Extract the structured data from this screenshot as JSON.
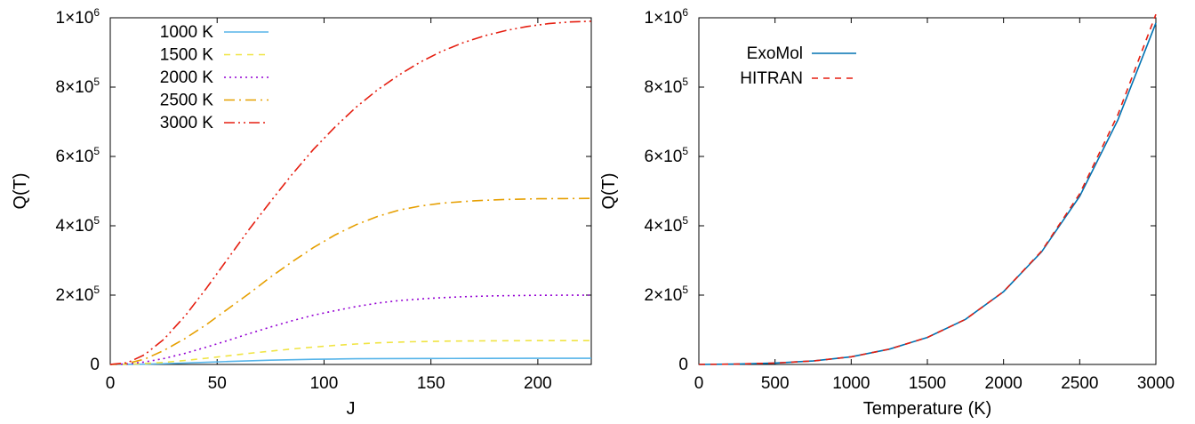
{
  "chart_data": [
    {
      "type": "line",
      "xlabel": "J",
      "ylabel": "Q(T)",
      "xlim": [
        0,
        225
      ],
      "ylim": [
        0,
        1000000
      ],
      "x_ticks": [
        0,
        50,
        100,
        150,
        200
      ],
      "x_tick_labels": [
        "0",
        "50",
        "100",
        "150",
        "200"
      ],
      "y_ticks": [
        0,
        200000,
        400000,
        600000,
        800000,
        1000000
      ],
      "y_tick_labels": [
        {
          "value": 0,
          "mant": "0",
          "exp": ""
        },
        {
          "value": 200000,
          "mant": "2×10",
          "exp": "5"
        },
        {
          "value": 400000,
          "mant": "4×10",
          "exp": "5"
        },
        {
          "value": 600000,
          "mant": "6×10",
          "exp": "5"
        },
        {
          "value": 800000,
          "mant": "8×10",
          "exp": "5"
        },
        {
          "value": 1000000,
          "mant": "1×10",
          "exp": "6"
        }
      ],
      "grid": false,
      "legend_position": "top-left",
      "series": [
        {
          "name": "1000 K",
          "color": "#56b4e9",
          "dash": "solid",
          "x": [
            0,
            8,
            16,
            25,
            35,
            45,
            55,
            65,
            75,
            85,
            95,
            105,
            115,
            130,
            150,
            175,
            200,
            225
          ],
          "y": [
            0,
            200,
            800,
            2000,
            4000,
            6200,
            8500,
            10500,
            12200,
            13700,
            14800,
            15700,
            16300,
            16900,
            17300,
            17500,
            17600,
            17600
          ]
        },
        {
          "name": "1500 K",
          "color": "#f0e442",
          "dash": "dash",
          "x": [
            0,
            8,
            16,
            25,
            35,
            45,
            55,
            65,
            75,
            85,
            95,
            105,
            115,
            125,
            140,
            160,
            180,
            200,
            225
          ],
          "y": [
            0,
            500,
            2500,
            6000,
            11500,
            18000,
            25000,
            32000,
            38500,
            44500,
            50000,
            55000,
            59000,
            62200,
            65500,
            67500,
            68300,
            68600,
            68700
          ]
        },
        {
          "name": "2000 K",
          "color": "#9400d3",
          "dash": "dot",
          "x": [
            0,
            8,
            16,
            25,
            35,
            45,
            55,
            65,
            75,
            85,
            95,
            105,
            115,
            125,
            135,
            150,
            165,
            180,
            200,
            225
          ],
          "y": [
            0,
            1500,
            7000,
            17000,
            32000,
            50000,
            69000,
            89000,
            108000,
            126000,
            142000,
            155000,
            167000,
            177000,
            184000,
            191000,
            195500,
            198000,
            199500,
            200000
          ]
        },
        {
          "name": "2500 K",
          "color": "#e69f00",
          "dash": "dashdot",
          "x": [
            0,
            8,
            16,
            25,
            35,
            45,
            55,
            65,
            75,
            85,
            95,
            105,
            115,
            125,
            135,
            145,
            155,
            170,
            185,
            200,
            225
          ],
          "y": [
            0,
            3000,
            15000,
            40000,
            75000,
            115000,
            160000,
            205000,
            252000,
            296000,
            337000,
            373000,
            403000,
            427000,
            445000,
            457000,
            465000,
            472000,
            476000,
            478000,
            479000
          ]
        },
        {
          "name": "3000 K",
          "color": "#e51e10",
          "dash": "dashdotdot",
          "x": [
            0,
            8,
            16,
            25,
            35,
            45,
            55,
            65,
            75,
            85,
            95,
            105,
            115,
            125,
            135,
            145,
            155,
            165,
            175,
            185,
            195,
            205,
            215,
            225
          ],
          "y": [
            0,
            5000,
            28000,
            72000,
            140000,
            220000,
            305000,
            390000,
            470000,
            548000,
            620000,
            684000,
            742000,
            792000,
            835000,
            872000,
            903000,
            928000,
            948000,
            963000,
            975000,
            983000,
            988000,
            990000
          ]
        }
      ]
    },
    {
      "type": "line",
      "xlabel": "Temperature (K)",
      "ylabel": "Q(T)",
      "xlim": [
        0,
        3000
      ],
      "ylim": [
        0,
        1000000
      ],
      "x_ticks": [
        0,
        500,
        1000,
        1500,
        2000,
        2500,
        3000
      ],
      "x_tick_labels": [
        "0",
        "500",
        "1000",
        "1500",
        "2000",
        "2500",
        "3000"
      ],
      "y_ticks": [
        0,
        200000,
        400000,
        600000,
        800000,
        1000000
      ],
      "y_tick_labels": [
        {
          "value": 0,
          "mant": "0",
          "exp": ""
        },
        {
          "value": 200000,
          "mant": "2×10",
          "exp": "5"
        },
        {
          "value": 400000,
          "mant": "4×10",
          "exp": "5"
        },
        {
          "value": 600000,
          "mant": "6×10",
          "exp": "5"
        },
        {
          "value": 800000,
          "mant": "8×10",
          "exp": "5"
        },
        {
          "value": 1000000,
          "mant": "1×10",
          "exp": "6"
        }
      ],
      "grid": false,
      "legend_position": "top-left",
      "series": [
        {
          "name": "ExoMol",
          "color": "#0072b2",
          "dash": "solid",
          "x": [
            0,
            250,
            500,
            750,
            1000,
            1250,
            1500,
            1750,
            2000,
            2250,
            2500,
            2750,
            3000
          ],
          "y": [
            0,
            1000,
            4000,
            10000,
            22000,
            44000,
            78000,
            130000,
            210000,
            325000,
            485000,
            705000,
            985000
          ]
        },
        {
          "name": "HITRAN",
          "color": "#e51e10",
          "dash": "dash",
          "x": [
            0,
            250,
            500,
            750,
            1000,
            1250,
            1500,
            1750,
            2000,
            2250,
            2500,
            2750,
            3000
          ],
          "y": [
            0,
            1000,
            4000,
            10000,
            22000,
            44000,
            78000,
            130000,
            210000,
            327000,
            492000,
            720000,
            1010000
          ]
        }
      ]
    }
  ]
}
